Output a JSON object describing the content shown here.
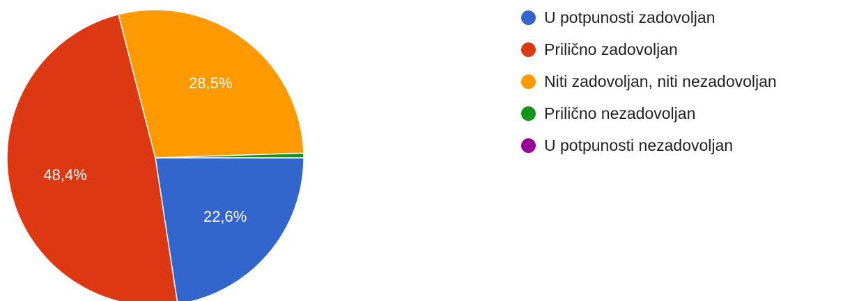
{
  "chart_data": {
    "type": "pie",
    "title": "",
    "legend_position": "right",
    "slices": [
      {
        "name": "U potpunosti zadovoljan",
        "value": 22.6,
        "label": "22,6%",
        "color": "#3366cc"
      },
      {
        "name": "Prilično zadovoljan",
        "value": 48.4,
        "label": "48,4%",
        "color": "#dc3912"
      },
      {
        "name": "Niti zadovoljan, niti nezadovoljan",
        "value": 28.5,
        "label": "28,5%",
        "color": "#ff9900"
      },
      {
        "name": "Prilično nezadovoljan",
        "value": 0.5,
        "label": "",
        "color": "#109618"
      },
      {
        "name": "U potpunosti nezadovoljan",
        "value": 0,
        "label": "",
        "color": "#990099"
      }
    ]
  }
}
